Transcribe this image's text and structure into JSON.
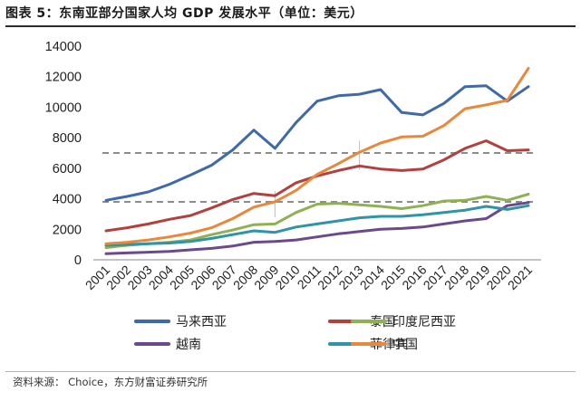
{
  "title": "图表 5：东南亚部分国家人均 GDP 发展水平（单位：美元）",
  "source": "资料来源： Choice，东方财富证券研究所",
  "chart_data": {
    "type": "line",
    "title": "图表 5：东南亚部分国家人均 GDP 发展水平（单位：美元）",
    "xlabel": "",
    "ylabel": "",
    "x": [
      "2001",
      "2002",
      "2003",
      "2004",
      "2005",
      "2006",
      "2007",
      "2008",
      "2009",
      "2010",
      "2011",
      "2012",
      "2013",
      "2014",
      "2015",
      "2016",
      "2017",
      "2018",
      "2019",
      "2020",
      "2021"
    ],
    "ylim": [
      0,
      14000
    ],
    "yticks": [
      0,
      2000,
      4000,
      6000,
      8000,
      10000,
      12000,
      14000
    ],
    "grid": false,
    "legend_position": "bottom",
    "reference_lines": [
      7000,
      3800
    ],
    "series": [
      {
        "name": "马来西亚",
        "color": "#3e6aa8",
        "values": [
          3900,
          4150,
          4450,
          4950,
          5550,
          6200,
          7200,
          8500,
          7300,
          9000,
          10400,
          10750,
          10850,
          11150,
          9650,
          9500,
          10250,
          11350,
          11400,
          10400,
          11350
        ]
      },
      {
        "name": "泰国",
        "color": "#b0413e",
        "values": [
          1900,
          2100,
          2350,
          2650,
          2900,
          3400,
          3950,
          4350,
          4200,
          5050,
          5500,
          5850,
          6150,
          5950,
          5850,
          5950,
          6550,
          7300,
          7800,
          7150,
          7200
        ]
      },
      {
        "name": "印度尼西亚",
        "color": "#8fb153",
        "values": [
          800,
          950,
          1050,
          1150,
          1300,
          1650,
          1950,
          2300,
          2350,
          3100,
          3650,
          3700,
          3600,
          3500,
          3350,
          3550,
          3850,
          3900,
          4150,
          3900,
          4300
        ]
      },
      {
        "name": "越南",
        "color": "#6a4a8c",
        "values": [
          400,
          450,
          500,
          550,
          650,
          750,
          900,
          1150,
          1200,
          1300,
          1500,
          1700,
          1850,
          2000,
          2050,
          2150,
          2350,
          2550,
          2700,
          3550,
          3750
        ]
      },
      {
        "name": "菲律宾",
        "color": "#2e94a6",
        "values": [
          950,
          1000,
          1050,
          1100,
          1200,
          1400,
          1650,
          1900,
          1800,
          2150,
          2350,
          2550,
          2750,
          2850,
          2850,
          2950,
          3100,
          3250,
          3500,
          3300,
          3550
        ]
      },
      {
        "name": "中国",
        "color": "#e8883d",
        "values": [
          1050,
          1150,
          1300,
          1500,
          1750,
          2100,
          2700,
          3450,
          3800,
          4550,
          5600,
          6300,
          7050,
          7650,
          8050,
          8100,
          8800,
          9900,
          10150,
          10450,
          12550
        ]
      }
    ]
  }
}
